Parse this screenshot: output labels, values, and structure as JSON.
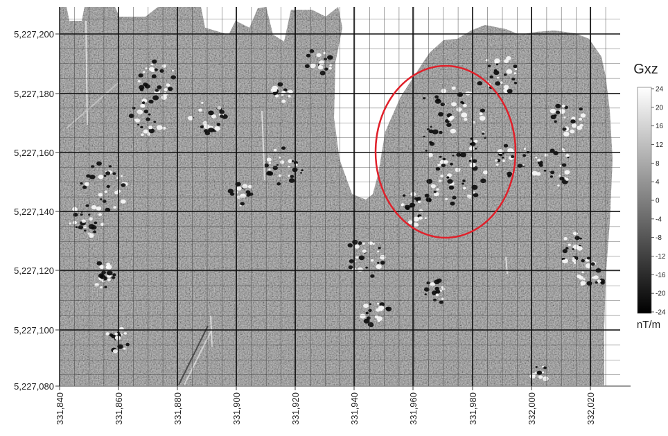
{
  "figure": {
    "colorbar_title": "Gxz",
    "colorbar_unit": "nT/m",
    "colorbar_ticks": [
      "24",
      "20",
      "16",
      "12",
      "8",
      "4",
      "0",
      "-4",
      "-8",
      "-12",
      "-16",
      "-20",
      "-24"
    ],
    "colorbar_colors": [
      "#ffffff",
      "#000000"
    ],
    "highlight_color": "#e0202a",
    "x_ticks": [
      "331,840",
      "331,860",
      "331,880",
      "331,900",
      "331,920",
      "331,940",
      "331,960",
      "331,980",
      "332,000",
      "332,020"
    ],
    "y_ticks": [
      "5,227,200",
      "5,227,180",
      "5,227,160",
      "5,227,140",
      "5,227,120",
      "5,227,100",
      "5,227,080"
    ]
  }
}
